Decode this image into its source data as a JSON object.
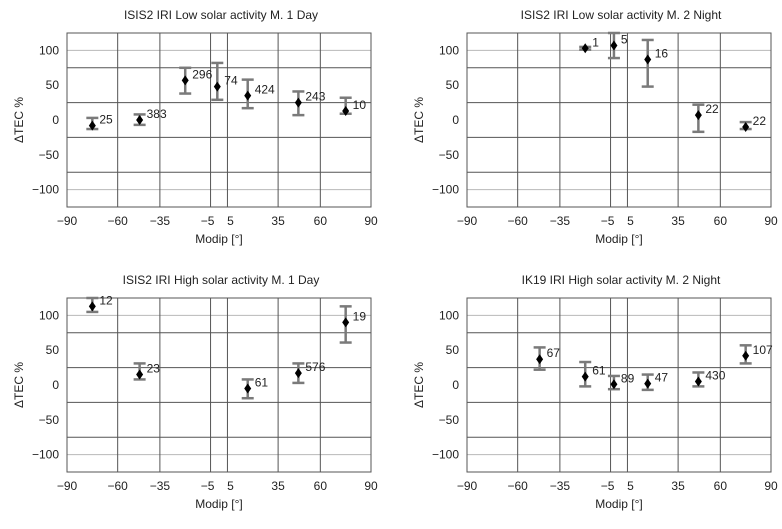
{
  "chart_data": [
    {
      "type": "scatter",
      "title": "ISIS2   IRI   Low solar activity M. 1 Day",
      "xlabel": "Modip [°]",
      "ylabel": "ΔTEC  %",
      "xlim": [
        -90,
        90
      ],
      "ylim": [
        -125,
        125
      ],
      "x_ticks": [
        -90,
        -60,
        -35,
        -5,
        5,
        35,
        60,
        90
      ],
      "x_tick_labels": [
        "−90",
        "−60",
        "−35",
        "−5",
        "5",
        "35",
        "60",
        "90"
      ],
      "y_ticks": [
        -100,
        -50,
        0,
        50,
        100
      ],
      "y_tick_labels": [
        "−100",
        "−50",
        "0",
        "50",
        "100"
      ],
      "gridlines_y": [
        -100,
        -75,
        -25,
        25,
        75,
        100
      ],
      "gridlines_x": [
        -60,
        -35,
        -5,
        5,
        35,
        60
      ],
      "grid": true,
      "points": [
        {
          "x": -75,
          "y": -8,
          "err_low": -13,
          "err_high": 3,
          "label": "25"
        },
        {
          "x": -47,
          "y": 0,
          "err_low": -7,
          "err_high": 8,
          "label": "383"
        },
        {
          "x": -20,
          "y": 57,
          "err_low": 38,
          "err_high": 75,
          "label": "296"
        },
        {
          "x": -1,
          "y": 48,
          "err_low": 29,
          "err_high": 82,
          "label": "74"
        },
        {
          "x": 17,
          "y": 35,
          "err_low": 17,
          "err_high": 58,
          "label": "424"
        },
        {
          "x": 47,
          "y": 25,
          "err_low": 7,
          "err_high": 41,
          "label": "243"
        },
        {
          "x": 75,
          "y": 13,
          "err_low": 9,
          "err_high": 32,
          "label": "10"
        }
      ]
    },
    {
      "type": "scatter",
      "title": "ISIS2   IRI   Low solar activity M. 2 Night",
      "xlabel": "Modip [°]",
      "ylabel": "ΔTEC  %",
      "xlim": [
        -90,
        90
      ],
      "ylim": [
        -125,
        125
      ],
      "x_ticks": [
        -90,
        -60,
        -35,
        -5,
        5,
        35,
        60,
        90
      ],
      "x_tick_labels": [
        "−90",
        "−60",
        "−35",
        "−5",
        "5",
        "35",
        "60",
        "90"
      ],
      "y_ticks": [
        -100,
        -50,
        0,
        50,
        100
      ],
      "y_tick_labels": [
        "−100",
        "−50",
        "0",
        "50",
        "100"
      ],
      "gridlines_y": [
        -100,
        -75,
        -25,
        25,
        75,
        100
      ],
      "gridlines_x": [
        -60,
        -35,
        -5,
        5,
        35,
        60
      ],
      "grid": true,
      "points": [
        {
          "x": -20,
          "y": 103,
          "err_low": 101,
          "err_high": 105,
          "label": "1"
        },
        {
          "x": -3,
          "y": 107,
          "err_low": 89,
          "err_high": 125,
          "label": "5"
        },
        {
          "x": 17,
          "y": 87,
          "err_low": 48,
          "err_high": 115,
          "label": "16"
        },
        {
          "x": 47,
          "y": 7,
          "err_low": -17,
          "err_high": 22,
          "label": "22"
        },
        {
          "x": 75,
          "y": -10,
          "err_low": -13,
          "err_high": -3,
          "label": "22"
        }
      ]
    },
    {
      "type": "scatter",
      "title": "ISIS2   IRI   High solar activity M. 1 Day",
      "xlabel": "Modip [°]",
      "ylabel": "ΔTEC  %",
      "xlim": [
        -90,
        90
      ],
      "ylim": [
        -125,
        125
      ],
      "x_ticks": [
        -90,
        -60,
        -35,
        -5,
        5,
        35,
        60,
        90
      ],
      "x_tick_labels": [
        "−90",
        "−60",
        "−35",
        "−5",
        "5",
        "35",
        "60",
        "90"
      ],
      "y_ticks": [
        -100,
        -50,
        0,
        50,
        100
      ],
      "y_tick_labels": [
        "−100",
        "−50",
        "0",
        "50",
        "100"
      ],
      "gridlines_y": [
        -100,
        -75,
        -25,
        25,
        75,
        100
      ],
      "gridlines_x": [
        -60,
        -35,
        -5,
        5,
        35,
        60
      ],
      "grid": true,
      "points": [
        {
          "x": -75,
          "y": 113,
          "err_low": 105,
          "err_high": 125,
          "label": "12"
        },
        {
          "x": -47,
          "y": 15,
          "err_low": 8,
          "err_high": 31,
          "label": "23"
        },
        {
          "x": 17,
          "y": -5,
          "err_low": -19,
          "err_high": 8,
          "label": "61"
        },
        {
          "x": 47,
          "y": 17,
          "err_low": 3,
          "err_high": 31,
          "label": "576"
        },
        {
          "x": 75,
          "y": 90,
          "err_low": 61,
          "err_high": 113,
          "label": "19"
        }
      ]
    },
    {
      "type": "scatter",
      "title": "IK19   IRI   High solar activity M. 2 Night",
      "xlabel": "Modip [°]",
      "ylabel": "ΔTEC  %",
      "xlim": [
        -90,
        90
      ],
      "ylim": [
        -125,
        125
      ],
      "x_ticks": [
        -90,
        -60,
        -35,
        -5,
        5,
        35,
        60,
        90
      ],
      "x_tick_labels": [
        "−90",
        "−60",
        "−35",
        "−5",
        "5",
        "35",
        "60",
        "90"
      ],
      "y_ticks": [
        -100,
        -50,
        0,
        50,
        100
      ],
      "y_tick_labels": [
        "−100",
        "−50",
        "0",
        "50",
        "100"
      ],
      "gridlines_y": [
        -100,
        -75,
        -25,
        25,
        75,
        100
      ],
      "gridlines_x": [
        -60,
        -35,
        -5,
        5,
        35,
        60
      ],
      "grid": true,
      "points": [
        {
          "x": -47,
          "y": 37,
          "err_low": 22,
          "err_high": 54,
          "label": "67"
        },
        {
          "x": -20,
          "y": 12,
          "err_low": -2,
          "err_high": 33,
          "label": "61"
        },
        {
          "x": -3,
          "y": 1,
          "err_low": -6,
          "err_high": 13,
          "label": "89"
        },
        {
          "x": 17,
          "y": 2,
          "err_low": -7,
          "err_high": 15,
          "label": "47"
        },
        {
          "x": 47,
          "y": 5,
          "err_low": -2,
          "err_high": 18,
          "label": "430"
        },
        {
          "x": 75,
          "y": 42,
          "err_low": 31,
          "err_high": 57,
          "label": "107"
        }
      ]
    }
  ],
  "colors": {
    "marker": "#000000",
    "errorbar": "#7a7a7a",
    "grid_major": "#555555",
    "grid_minor": "#b8b8b8",
    "frame": "#555555",
    "text": "#222222"
  }
}
